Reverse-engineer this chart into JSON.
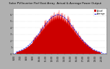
{
  "title": "Solar PV/Inverter Perf East Array  Actual & Average Power Output",
  "title_fontsize": 3.0,
  "bg_color": "#b0b0b0",
  "plot_bg_color": "#ffffff",
  "filled_color": "#cc0000",
  "spike_color": "#ff0000",
  "avg_line_color": "#0000dd",
  "grid_color": "#bbbbbb",
  "grid_linestyle": ":",
  "tick_fontsize": 2.2,
  "n_points": 288,
  "peak_kw": 6.0,
  "mu": 13.0,
  "sigma": 2.7,
  "x_dawn": 6.2,
  "x_dusk": 20.0,
  "ylim_max": 7.0,
  "xtick_hours": [
    6,
    7,
    8,
    9,
    10,
    11,
    12,
    13,
    14,
    15,
    16,
    17,
    18,
    19,
    20
  ],
  "yticks": [
    0,
    1,
    2,
    3,
    4,
    5,
    6
  ],
  "legend_entries": [
    "Actual",
    "Average"
  ],
  "legend_colors_fill": [
    "#cc0000",
    "#0000dd"
  ],
  "legend_linestyles": [
    "-",
    "--"
  ]
}
